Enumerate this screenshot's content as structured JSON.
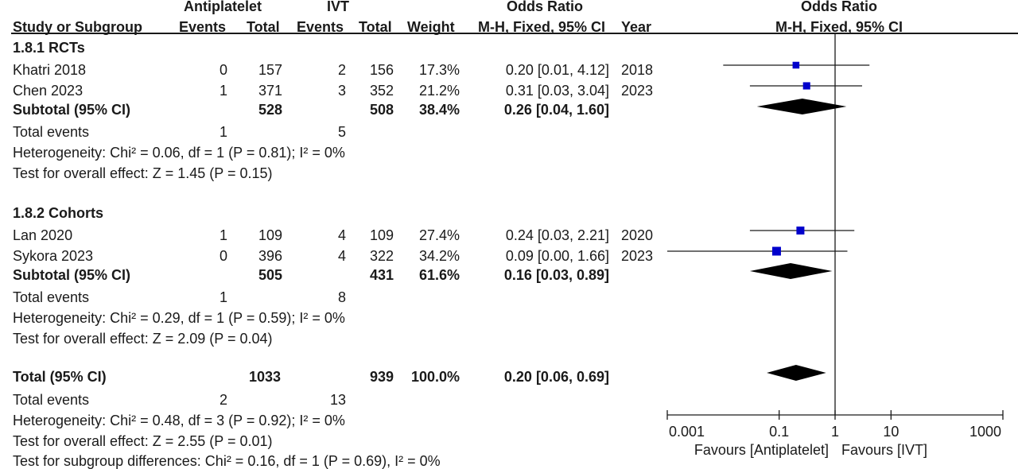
{
  "header": {
    "group1": "Antiplatelet",
    "group2": "IVT",
    "or_title": "Odds Ratio",
    "study_col": "Study or Subgroup",
    "events1": "Events",
    "total1": "Total",
    "events2": "Events",
    "total2": "Total",
    "weight": "Weight",
    "method": "M-H, Fixed, 95% CI",
    "year": "Year",
    "plot_title": "Odds Ratio",
    "plot_method": "M-H, Fixed, 95% CI"
  },
  "subgroups": [
    {
      "title": "1.8.1 RCTs",
      "studies": [
        {
          "name": "Khatri 2018",
          "ev1": "0",
          "tot1": "157",
          "ev2": "2",
          "tot2": "156",
          "weight": "17.3%",
          "ci": "0.20 [0.01, 4.12]",
          "year": "2018"
        },
        {
          "name": "Chen 2023",
          "ev1": "1",
          "tot1": "371",
          "ev2": "3",
          "tot2": "352",
          "weight": "21.2%",
          "ci": "0.31 [0.03, 3.04]",
          "year": "2023"
        }
      ],
      "subtotal": {
        "label": "Subtotal (95% CI)",
        "tot1": "528",
        "tot2": "508",
        "weight": "38.4%",
        "ci": "0.26 [0.04, 1.60]"
      },
      "events": {
        "label": "Total events",
        "ev1": "1",
        "ev2": "5"
      },
      "heterogeneity": "Heterogeneity: Chi² = 0.06, df = 1 (P = 0.81); I² = 0%",
      "overall": "Test for overall effect: Z = 1.45 (P = 0.15)"
    },
    {
      "title": "1.8.2 Cohorts",
      "studies": [
        {
          "name": "Lan 2020",
          "ev1": "1",
          "tot1": "109",
          "ev2": "4",
          "tot2": "109",
          "weight": "27.4%",
          "ci": "0.24 [0.03, 2.21]",
          "year": "2020"
        },
        {
          "name": "Sykora 2023",
          "ev1": "0",
          "tot1": "396",
          "ev2": "4",
          "tot2": "322",
          "weight": "34.2%",
          "ci": "0.09 [0.00, 1.66]",
          "year": "2023"
        }
      ],
      "subtotal": {
        "label": "Subtotal (95% CI)",
        "tot1": "505",
        "tot2": "431",
        "weight": "61.6%",
        "ci": "0.16 [0.03, 0.89]"
      },
      "events": {
        "label": "Total events",
        "ev1": "1",
        "ev2": "8"
      },
      "heterogeneity": "Heterogeneity: Chi² = 0.29, df = 1 (P = 0.59); I² = 0%",
      "overall": "Test for overall effect: Z = 2.09 (P = 0.04)"
    }
  ],
  "total": {
    "label": "Total (95% CI)",
    "tot1": "1033",
    "tot2": "939",
    "weight": "100.0%",
    "ci": "0.20 [0.06, 0.69]"
  },
  "total_events": {
    "label": "Total events",
    "ev1": "2",
    "ev2": "13"
  },
  "total_heterogeneity": "Heterogeneity: Chi² = 0.48, df = 3 (P = 0.92); I² = 0%",
  "total_overall": "Test for overall effect: Z = 2.55 (P = 0.01)",
  "subgroup_diff": "Test for subgroup differences: Chi² = 0.16, df = 1 (P = 0.69), I² = 0%",
  "colors": {
    "marker": "#0000cc",
    "diamond": "#000000",
    "line": "#1a1a1a"
  },
  "chart_data": {
    "type": "forest",
    "x_scale": "log",
    "xlim": [
      0.001,
      1000
    ],
    "null_value": 1,
    "tick_labels": [
      "0.001",
      "0.1",
      "1",
      "10",
      "1000"
    ],
    "favours_left": "Favours [Antiplatelet]",
    "favours_right": "Favours [IVT]",
    "points": [
      {
        "label": "Khatri 2018",
        "or": 0.2,
        "lo": 0.01,
        "hi": 4.12,
        "weight": 17.3
      },
      {
        "label": "Chen 2023",
        "or": 0.31,
        "lo": 0.03,
        "hi": 3.04,
        "weight": 21.2
      },
      {
        "label": "Lan 2020",
        "or": 0.24,
        "lo": 0.03,
        "hi": 2.21,
        "weight": 27.4
      },
      {
        "label": "Sykora 2023",
        "or": 0.09,
        "lo": 0.0,
        "hi": 1.66,
        "weight": 34.2
      }
    ],
    "diamonds": [
      {
        "label": "Subtotal RCTs",
        "or": 0.26,
        "lo": 0.04,
        "hi": 1.6
      },
      {
        "label": "Subtotal Cohorts",
        "or": 0.16,
        "lo": 0.03,
        "hi": 0.89
      },
      {
        "label": "Total",
        "or": 0.2,
        "lo": 0.06,
        "hi": 0.69
      }
    ]
  }
}
